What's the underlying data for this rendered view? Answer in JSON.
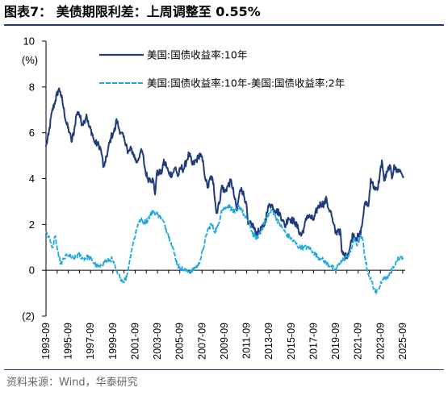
{
  "title": "图表7：  美债期限利差：上周调整至 0.55%",
  "source": "资料来源：Wind，华泰研究",
  "colors": {
    "series1": "#1f3b7a",
    "series2": "#1fa8e0",
    "rule": "#1f3b6e"
  },
  "chart_data": {
    "type": "line",
    "ylabel": "(%)",
    "ylim": [
      -2,
      10
    ],
    "yticks": [
      {
        "value": 10,
        "label": "10"
      },
      {
        "value": 8,
        "label": "8"
      },
      {
        "value": 6,
        "label": "6"
      },
      {
        "value": 4,
        "label": "4"
      },
      {
        "value": 2,
        "label": "2"
      },
      {
        "value": 0,
        "label": "0"
      },
      {
        "value": -2,
        "label": "(2)"
      }
    ],
    "xlim": [
      1993.67,
      2025.75
    ],
    "xtick_labels": [
      "1993-09",
      "1995-09",
      "1997-09",
      "1999-09",
      "2001-09",
      "2003-09",
      "2005-09",
      "2007-09",
      "2009-09",
      "2011-09",
      "2013-09",
      "2015-09",
      "2017-09",
      "2019-09",
      "2021-09",
      "2023-09",
      "2025-09"
    ],
    "legend": "top-right",
    "grid": false,
    "series": [
      {
        "name": "美国:国债收益率:10年",
        "style": "solid",
        "x": [
          1993.67,
          1993.9,
          1994.2,
          1994.5,
          1994.8,
          1994.95,
          1995.2,
          1995.5,
          1995.8,
          1995.95,
          1996.2,
          1996.4,
          1996.6,
          1996.9,
          1997.1,
          1997.3,
          1997.5,
          1997.8,
          1998.0,
          1998.3,
          1998.5,
          1998.7,
          1998.8,
          1999.0,
          1999.2,
          1999.5,
          1999.7,
          1999.9,
          2000.0,
          2000.2,
          2000.4,
          2000.7,
          2000.9,
          2001.0,
          2001.3,
          2001.5,
          2001.8,
          2001.9,
          2002.1,
          2002.3,
          2002.6,
          2002.8,
          2003.0,
          2003.3,
          2003.45,
          2003.6,
          2003.8,
          2004.0,
          2004.2,
          2004.45,
          2004.7,
          2005.0,
          2005.3,
          2005.5,
          2005.8,
          2006.0,
          2006.3,
          2006.5,
          2006.8,
          2007.0,
          2007.3,
          2007.5,
          2007.8,
          2008.0,
          2008.2,
          2008.45,
          2008.7,
          2008.95,
          2009.2,
          2009.45,
          2009.7,
          2010.0,
          2010.3,
          2010.6,
          2010.8,
          2011.0,
          2011.2,
          2011.6,
          2011.8,
          2012.2,
          2012.5,
          2012.8,
          2013.2,
          2013.5,
          2013.7,
          2014.0,
          2014.3,
          2014.6,
          2014.9,
          2015.1,
          2015.4,
          2015.7,
          2016.0,
          2016.3,
          2016.55,
          2016.85,
          2017.1,
          2017.4,
          2017.7,
          2018.0,
          2018.3,
          2018.6,
          2018.85,
          2019.0,
          2019.2,
          2019.4,
          2019.67,
          2019.9,
          2020.1,
          2020.2,
          2020.3,
          2020.6,
          2020.9,
          2021.2,
          2021.5,
          2021.8,
          2022.0,
          2022.2,
          2022.4,
          2022.6,
          2022.8,
          2022.95,
          2023.2,
          2023.4,
          2023.6,
          2023.8,
          2024.0,
          2024.3,
          2024.5,
          2024.7,
          2024.9,
          2025.1,
          2025.3,
          2025.5,
          2025.75
        ],
        "y": [
          5.4,
          5.9,
          6.9,
          7.4,
          7.9,
          7.8,
          7.2,
          6.4,
          6.0,
          5.6,
          6.1,
          6.8,
          6.9,
          6.4,
          6.5,
          6.8,
          6.3,
          6.0,
          5.6,
          5.5,
          5.4,
          5.0,
          4.5,
          4.7,
          5.2,
          5.8,
          6.0,
          6.2,
          6.6,
          6.2,
          6.0,
          5.7,
          5.5,
          5.1,
          5.3,
          5.1,
          4.7,
          4.8,
          5.1,
          5.2,
          4.3,
          4.0,
          4.0,
          3.9,
          3.3,
          4.2,
          4.3,
          4.2,
          4.7,
          4.6,
          4.2,
          4.2,
          4.5,
          4.1,
          4.5,
          4.4,
          4.8,
          5.1,
          4.6,
          4.7,
          4.9,
          5.1,
          4.6,
          3.9,
          3.6,
          4.1,
          3.8,
          2.5,
          2.9,
          3.7,
          3.4,
          3.7,
          3.9,
          3.1,
          2.6,
          3.3,
          3.6,
          3.0,
          2.0,
          2.0,
          1.6,
          1.7,
          1.9,
          2.5,
          2.9,
          2.8,
          2.6,
          2.5,
          2.2,
          1.9,
          2.3,
          2.2,
          2.1,
          1.8,
          1.5,
          1.9,
          2.4,
          2.3,
          2.2,
          2.7,
          2.9,
          2.9,
          3.1,
          2.7,
          2.6,
          2.1,
          1.6,
          1.8,
          1.6,
          0.8,
          0.7,
          0.6,
          0.9,
          1.6,
          1.4,
          1.5,
          1.9,
          2.7,
          3.0,
          2.8,
          4.0,
          3.8,
          3.5,
          3.5,
          4.1,
          4.8,
          3.9,
          4.3,
          4.6,
          4.0,
          4.6,
          4.3,
          4.4,
          4.3,
          4.1
        ]
      },
      {
        "name": "美国:国债收益率:10年-美国:国债收益率:2年",
        "style": "dashed",
        "x": [
          1993.67,
          1993.9,
          1994.1,
          1994.3,
          1994.5,
          1994.8,
          1995.0,
          1995.3,
          1995.6,
          1995.8,
          1996.2,
          1996.6,
          1997.0,
          1997.5,
          1998.0,
          1998.5,
          1998.9,
          1999.3,
          1999.6,
          1999.9,
          2000.1,
          2000.3,
          2000.6,
          2000.9,
          2001.1,
          2001.3,
          2001.6,
          2001.9,
          2002.2,
          2002.5,
          2002.8,
          2003.0,
          2003.3,
          2003.5,
          2003.8,
          2004.0,
          2004.3,
          2004.6,
          2004.9,
          2005.2,
          2005.5,
          2005.8,
          2006.1,
          2006.4,
          2006.7,
          2007.0,
          2007.3,
          2007.6,
          2007.9,
          2008.2,
          2008.5,
          2008.8,
          2009.1,
          2009.4,
          2009.7,
          2010.0,
          2010.3,
          2010.6,
          2010.9,
          2011.2,
          2011.5,
          2011.8,
          2012.2,
          2012.6,
          2013.0,
          2013.4,
          2013.7,
          2014.0,
          2014.4,
          2014.8,
          2015.2,
          2015.6,
          2016.0,
          2016.4,
          2016.8,
          2017.2,
          2017.6,
          2018.0,
          2018.4,
          2018.8,
          2019.2,
          2019.6,
          2019.9,
          2020.1,
          2020.4,
          2020.7,
          2021.0,
          2021.3,
          2021.6,
          2021.9,
          2022.1,
          2022.3,
          2022.5,
          2022.7,
          2022.9,
          2023.1,
          2023.3,
          2023.5,
          2023.7,
          2023.9,
          2024.1,
          2024.3,
          2024.5,
          2024.7,
          2024.9,
          2025.1,
          2025.3,
          2025.5,
          2025.75
        ],
        "y": [
          1.6,
          1.5,
          1.2,
          1.0,
          1.5,
          0.6,
          0.3,
          0.5,
          0.7,
          0.6,
          0.5,
          0.7,
          0.5,
          0.6,
          0.3,
          0.1,
          0.4,
          0.4,
          0.5,
          0.1,
          -0.2,
          -0.3,
          -0.5,
          -0.3,
          0.2,
          0.8,
          1.4,
          2.0,
          2.2,
          2.1,
          2.2,
          2.4,
          2.6,
          2.5,
          2.4,
          2.3,
          2.0,
          1.6,
          1.2,
          0.7,
          0.2,
          0.1,
          0.0,
          0.0,
          -0.1,
          0.1,
          0.2,
          0.6,
          1.2,
          1.8,
          2.0,
          1.7,
          1.9,
          2.6,
          2.7,
          2.8,
          2.7,
          2.5,
          2.8,
          2.7,
          2.3,
          2.2,
          1.6,
          1.4,
          1.8,
          2.2,
          2.5,
          2.6,
          2.2,
          1.9,
          1.6,
          1.4,
          1.2,
          1.0,
          1.0,
          1.0,
          0.8,
          0.6,
          0.5,
          0.3,
          0.2,
          0.0,
          0.2,
          0.4,
          0.5,
          0.6,
          0.8,
          1.4,
          1.1,
          1.5,
          1.3,
          0.5,
          0.0,
          -0.3,
          -0.5,
          -0.8,
          -1.0,
          -0.8,
          -0.5,
          -0.4,
          -0.3,
          -0.4,
          -0.1,
          0.0,
          0.2,
          0.4,
          0.5,
          0.6,
          0.55
        ]
      }
    ]
  }
}
